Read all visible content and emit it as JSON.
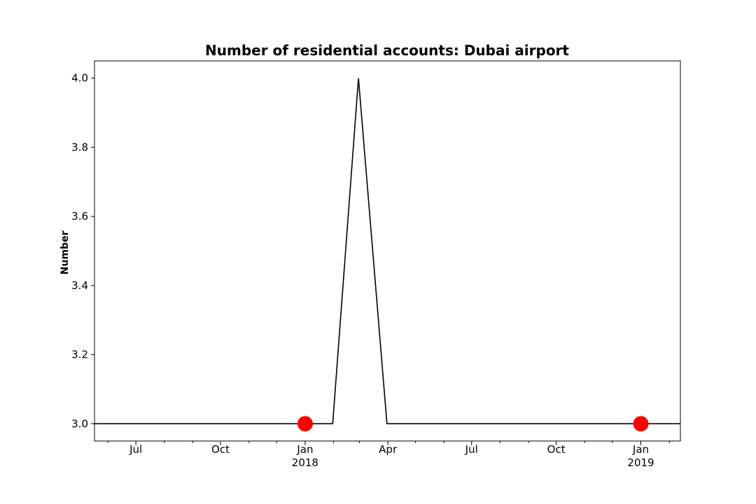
{
  "chart_data": {
    "type": "line",
    "title": "Number of residential accounts: Dubai airport",
    "xlabel": "",
    "ylabel": "Number",
    "xlim": [
      "2017-05-17",
      "2019-02-13"
    ],
    "ylim": [
      2.95,
      4.05
    ],
    "yticks": [
      3.0,
      3.2,
      3.4,
      3.6,
      3.8,
      4.0
    ],
    "ytick_labels": [
      "3.0",
      "3.2",
      "3.4",
      "3.6",
      "3.8",
      "4.0"
    ],
    "xticks": [
      {
        "date": "2017-07-01",
        "label": "Jul",
        "sub": ""
      },
      {
        "date": "2017-10-01",
        "label": "Oct",
        "sub": ""
      },
      {
        "date": "2018-01-01",
        "label": "Jan",
        "sub": "2018"
      },
      {
        "date": "2018-04-01",
        "label": "Apr",
        "sub": ""
      },
      {
        "date": "2018-07-01",
        "label": "Jul",
        "sub": ""
      },
      {
        "date": "2018-10-01",
        "label": "Oct",
        "sub": ""
      },
      {
        "date": "2019-01-01",
        "label": "Jan",
        "sub": "2019"
      }
    ],
    "series": [
      {
        "color": "#000000",
        "x": [
          "2017-05-17",
          "2018-01-31",
          "2018-02-28",
          "2018-03-31",
          "2019-02-13"
        ],
        "y": [
          3,
          3,
          4,
          3,
          3
        ]
      }
    ],
    "markers": {
      "color": "#ff0000",
      "x": [
        "2018-01-01",
        "2019-01-01"
      ],
      "y": [
        3,
        3
      ]
    },
    "grid": false,
    "legend": "none"
  }
}
